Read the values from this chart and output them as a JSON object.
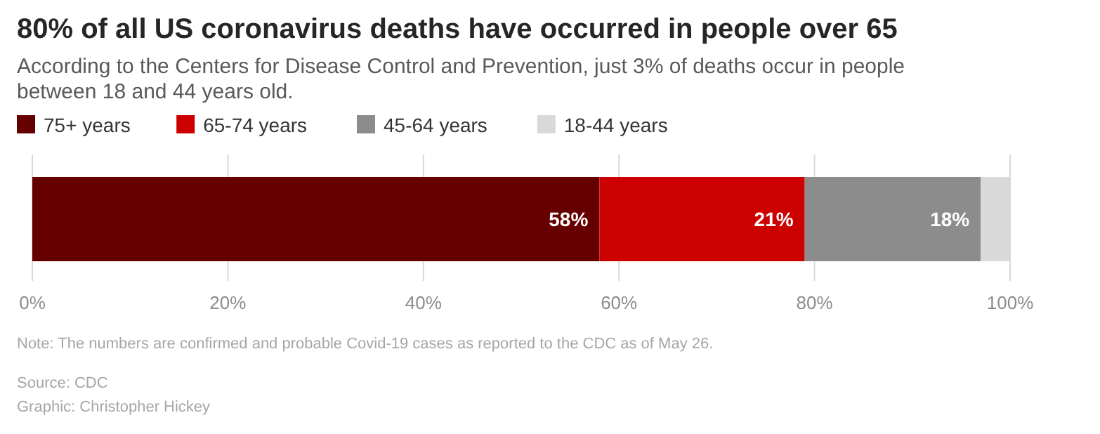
{
  "chart_data": {
    "type": "bar",
    "orientation": "horizontal",
    "stacked": true,
    "title": "80% of all US coronavirus deaths have occurred in people over 65",
    "subtitle": "According to the Centers for Disease Control and Prevention, just 3% of deaths occur in people between 18 and 44 years old.",
    "categories": [
      null
    ],
    "series": [
      {
        "name": "75+ years",
        "color": "#660000",
        "values": [
          58
        ],
        "value_labels": [
          "58%"
        ]
      },
      {
        "name": "65-74 years",
        "color": "#cc0000",
        "values": [
          21
        ],
        "value_labels": [
          "21%"
        ]
      },
      {
        "name": "45-64 years",
        "color": "#8c8c8c",
        "values": [
          18
        ],
        "value_labels": [
          "18%"
        ]
      },
      {
        "name": "18-44 years",
        "color": "#d9d9d9",
        "values": [
          3
        ],
        "value_labels": [
          null
        ]
      }
    ],
    "xlim": [
      0,
      100
    ],
    "xticks": [
      {
        "value": 0,
        "label": "0%"
      },
      {
        "value": 20,
        "label": "20%"
      },
      {
        "value": 40,
        "label": "40%"
      },
      {
        "value": 60,
        "label": "60%"
      },
      {
        "value": 80,
        "label": "80%"
      },
      {
        "value": 100,
        "label": "100%"
      }
    ],
    "grid": "x",
    "legend": "top left",
    "annotations": [
      "Note: The numbers are confirmed and probable Covid-19 cases as reported to the CDC as of May 26.",
      "Source: CDC",
      "Graphic: Christopher Hickey"
    ]
  }
}
